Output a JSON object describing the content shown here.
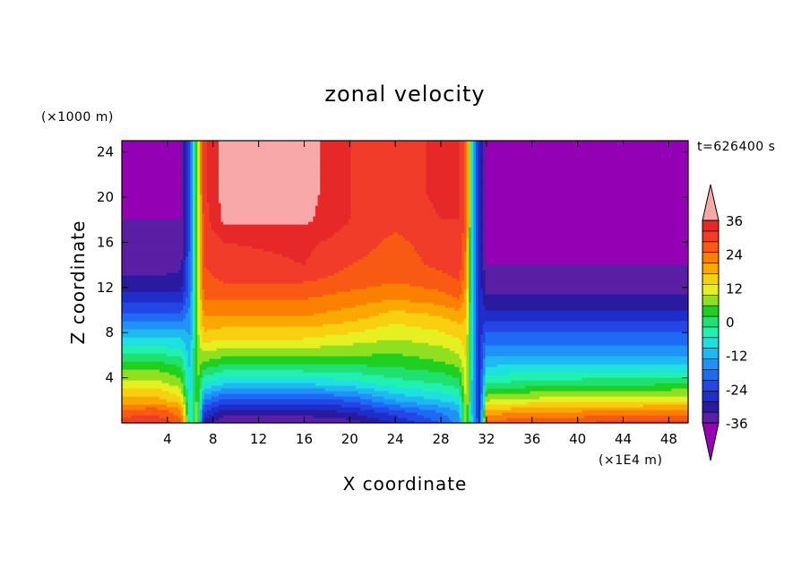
{
  "chart_data": {
    "type": "heatmap",
    "title": "zonal velocity",
    "xlabel": "X coordinate",
    "ylabel": "Z coordinate",
    "x_unit": "(×1E4 m)",
    "y_unit": "(×1000 m)",
    "time_label": "t=626400 s",
    "xlim": [
      0,
      49.7
    ],
    "ylim": [
      0,
      25
    ],
    "x_ticks": [
      4,
      8,
      12,
      16,
      20,
      24,
      28,
      32,
      36,
      40,
      44,
      48
    ],
    "y_ticks": [
      4,
      8,
      12,
      16,
      20,
      24
    ],
    "colorbar": {
      "ticks": [
        36,
        24,
        12,
        0,
        -12,
        -24,
        -36
      ],
      "levels": [
        -40,
        -36,
        -32,
        -28,
        -24,
        -20,
        -16,
        -12,
        -8,
        -4,
        0,
        4,
        8,
        12,
        16,
        20,
        24,
        28,
        32,
        36,
        40
      ],
      "colors": [
        "#9400b4",
        "#5a1fa5",
        "#2a1aa0",
        "#1f2ec8",
        "#2446e6",
        "#1f6af5",
        "#2091f8",
        "#1fb8f0",
        "#1ee0e0",
        "#20f0b0",
        "#20e070",
        "#20d020",
        "#90e020",
        "#e6f020",
        "#f8d010",
        "#fba800",
        "#fb8000",
        "#f85a14",
        "#f03c28",
        "#e62828",
        "#f8a8a8"
      ],
      "extend": "both"
    },
    "profiles": [
      {
        "x": 0.0,
        "u": [
          34,
          30,
          22,
          14,
          4,
          -8,
          -18,
          -26,
          -31,
          -34,
          -36,
          -36,
          -38,
          -38
        ]
      },
      {
        "x": 3.0,
        "u": [
          36,
          31,
          22,
          14,
          4,
          -8,
          -18,
          -26,
          -31,
          -34,
          -36,
          -36,
          -38,
          -38
        ]
      },
      {
        "x": 5.2,
        "u": [
          30,
          26,
          18,
          10,
          2,
          -8,
          -18,
          -26,
          -30,
          -33,
          -35,
          -36,
          -36,
          -36
        ]
      },
      {
        "x": 6.0,
        "u": [
          -4,
          -4,
          -6,
          -8,
          -10,
          -12,
          -14,
          -16,
          -18,
          -18,
          -18,
          -18,
          -18,
          -18
        ]
      },
      {
        "x": 6.6,
        "u": [
          10,
          10,
          10,
          10,
          10,
          10,
          10,
          10,
          10,
          10,
          10,
          10,
          10,
          10
        ]
      },
      {
        "x": 7.2,
        "u": [
          -30,
          -24,
          -16,
          -4,
          8,
          18,
          24,
          28,
          31,
          32,
          33,
          34,
          35,
          35
        ]
      },
      {
        "x": 9.0,
        "u": [
          -36,
          -30,
          -22,
          -8,
          6,
          16,
          24,
          28,
          32,
          34,
          36,
          41,
          42,
          42
        ]
      },
      {
        "x": 16.0,
        "u": [
          -36,
          -30,
          -22,
          -8,
          6,
          16,
          24,
          28,
          32,
          36,
          37,
          41,
          42,
          42
        ]
      },
      {
        "x": 20.0,
        "u": [
          -34,
          -28,
          -20,
          -6,
          6,
          14,
          22,
          26,
          30,
          32,
          34,
          36,
          36,
          36
        ]
      },
      {
        "x": 24.0,
        "u": [
          -28,
          -22,
          -12,
          -2,
          6,
          12,
          18,
          24,
          28,
          30,
          31,
          33,
          34,
          34
        ]
      },
      {
        "x": 28.0,
        "u": [
          -20,
          -16,
          -8,
          0,
          8,
          14,
          20,
          26,
          30,
          33,
          34,
          36,
          37,
          37
        ]
      },
      {
        "x": 29.6,
        "u": [
          -14,
          -12,
          -6,
          2,
          10,
          16,
          22,
          28,
          32,
          34,
          35,
          36,
          37,
          37
        ]
      },
      {
        "x": 30.2,
        "u": [
          12,
          12,
          14,
          14,
          16,
          18,
          20,
          22,
          24,
          26,
          28,
          30,
          30,
          30
        ]
      },
      {
        "x": 30.9,
        "u": [
          -12,
          -14,
          -14,
          -14,
          -14,
          -14,
          -14,
          -14,
          -14,
          -14,
          -14,
          -14,
          -14,
          -14
        ]
      },
      {
        "x": 31.4,
        "u": [
          -26,
          -26,
          -26,
          -26,
          -26,
          -26,
          -26,
          -26,
          -26,
          -26,
          -26,
          -26,
          -26,
          -26
        ]
      },
      {
        "x": 32.0,
        "u": [
          30,
          22,
          12,
          0,
          -10,
          -18,
          -26,
          -31,
          -34,
          -36,
          -37,
          -38,
          -38,
          -38
        ]
      },
      {
        "x": 36.0,
        "u": [
          32,
          24,
          14,
          2,
          -10,
          -18,
          -26,
          -31,
          -34,
          -36,
          -37,
          -38,
          -38,
          -38
        ]
      },
      {
        "x": 42.0,
        "u": [
          33,
          25,
          15,
          3,
          -10,
          -18,
          -26,
          -31,
          -34,
          -36,
          -37,
          -38,
          -38,
          -38
        ]
      },
      {
        "x": 49.7,
        "u": [
          34,
          26,
          16,
          4,
          -10,
          -18,
          -26,
          -31,
          -34,
          -36,
          -36,
          -38,
          -38,
          -38
        ]
      }
    ],
    "z_levels": [
      0.0,
      1.0,
      2.0,
      3.5,
      5.5,
      7.5,
      9.5,
      11.0,
      12.5,
      14.0,
      16.0,
      18.0,
      20.5,
      25.0
    ]
  }
}
